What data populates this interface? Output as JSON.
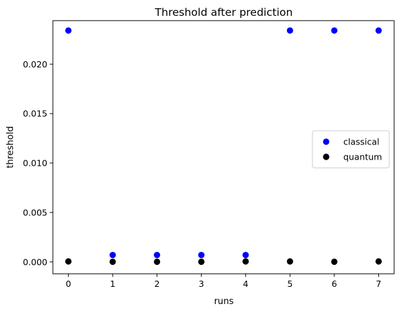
{
  "chart_data": {
    "type": "scatter",
    "title": "Threshold after prediction",
    "xlabel": "runs",
    "ylabel": "threshold",
    "xlim": [
      -0.35,
      7.35
    ],
    "ylim": [
      -0.0012,
      0.0244
    ],
    "xticks": [
      0,
      1,
      2,
      3,
      4,
      5,
      6,
      7
    ],
    "xtick_labels": [
      "0",
      "1",
      "2",
      "3",
      "4",
      "5",
      "6",
      "7"
    ],
    "yticks": [
      0.0,
      0.005,
      0.01,
      0.015,
      0.02
    ],
    "ytick_labels": [
      "0.000",
      "0.005",
      "0.010",
      "0.015",
      "0.020"
    ],
    "grid": false,
    "legend_position": "center-right",
    "series": [
      {
        "name": "classical",
        "color": "#0000ff",
        "x": [
          0,
          1,
          2,
          3,
          4,
          5,
          6,
          7
        ],
        "y": [
          0.0234,
          0.0007,
          0.0007,
          0.0007,
          0.0007,
          0.0234,
          0.0234,
          0.0234
        ]
      },
      {
        "name": "quantum",
        "color": "#000000",
        "x": [
          0,
          1,
          2,
          3,
          4,
          5,
          6,
          7
        ],
        "y": [
          5e-05,
          2e-05,
          2e-05,
          2e-05,
          5e-05,
          5e-05,
          2e-05,
          5e-05
        ]
      }
    ]
  }
}
